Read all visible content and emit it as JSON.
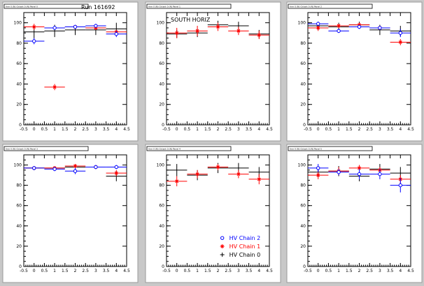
{
  "colors": {
    "chain2": "#0000ff",
    "chain1": "#ff0000",
    "chain0": "#000000",
    "background": "#c8c8c8"
  },
  "legend": {
    "entries": [
      {
        "label": "HV Chain 2",
        "color": "#0000ff",
        "marker": "open-circle"
      },
      {
        "label": "HV Chain 1",
        "color": "#ff0000",
        "marker": "star"
      },
      {
        "label": "HV Chain 0",
        "color": "#000000",
        "marker": "plus"
      }
    ]
  },
  "chart_data": [
    {
      "type": "scatter",
      "title": "Arm 0 (N) Octant 0 (N) Panel 0",
      "annotation": "Run 161692",
      "xlim": [
        -0.5,
        4.5
      ],
      "ylim": [
        0,
        110
      ],
      "xticks": [
        "-0.5",
        "0",
        "0.5",
        "1",
        "1.5",
        "2",
        "2.5",
        "3",
        "3.5",
        "4",
        "4.5"
      ],
      "yticks": [
        "0",
        "20",
        "40",
        "60",
        "80",
        "100"
      ],
      "series": [
        {
          "name": "HV Chain 2",
          "points": [
            {
              "x": 0,
              "y": 82,
              "xerr": 0.5,
              "yerr": 3
            },
            {
              "x": 1,
              "y": 95,
              "xerr": 0.5,
              "yerr": 2
            },
            {
              "x": 2,
              "y": 96,
              "xerr": 0.5,
              "yerr": 2
            },
            {
              "x": 3,
              "y": 97,
              "xerr": 0.5,
              "yerr": 2
            },
            {
              "x": 4,
              "y": 89,
              "xerr": 0.5,
              "yerr": 3
            }
          ]
        },
        {
          "name": "HV Chain 1",
          "points": [
            {
              "x": 0,
              "y": 96,
              "xerr": 0.5,
              "yerr": 3
            },
            {
              "x": 1,
              "y": 37,
              "xerr": 0.5,
              "yerr": 3
            },
            {
              "x": 2,
              "y": 96,
              "xerr": 0.5,
              "yerr": 2
            },
            {
              "x": 3,
              "y": 95,
              "xerr": 0.5,
              "yerr": 2
            },
            {
              "x": 4,
              "y": 91,
              "xerr": 0.5,
              "yerr": 2
            }
          ]
        },
        {
          "name": "HV Chain 0",
          "points": [
            {
              "x": 0,
              "y": 91,
              "xerr": 0.5,
              "yerr": 6
            },
            {
              "x": 1,
              "y": 92,
              "xerr": 0.5,
              "yerr": 6
            },
            {
              "x": 2,
              "y": 93,
              "xerr": 0.5,
              "yerr": 5
            },
            {
              "x": 3,
              "y": 93,
              "xerr": 0.5,
              "yerr": 5
            },
            {
              "x": 4,
              "y": 94,
              "xerr": 0.5,
              "yerr": 6
            }
          ]
        }
      ]
    },
    {
      "type": "scatter",
      "title": "Arm 0 (N) Octant 0 (N) Panel 1",
      "annotation": "SOUTH HORIZ",
      "xlim": [
        -0.5,
        4.5
      ],
      "ylim": [
        0,
        110
      ],
      "xticks": [
        "-0.5",
        "0",
        "0.5",
        "1",
        "1.5",
        "2",
        "2.5",
        "3",
        "3.5",
        "4",
        "4.5"
      ],
      "yticks": [
        "0",
        "20",
        "40",
        "60",
        "80",
        "100"
      ],
      "series": [
        {
          "name": "HV Chain 2",
          "points": []
        },
        {
          "name": "HV Chain 1",
          "points": [
            {
              "x": 0,
              "y": 90,
              "xerr": 0.5,
              "yerr": 5
            },
            {
              "x": 1,
              "y": 92,
              "xerr": 0.5,
              "yerr": 5
            },
            {
              "x": 2,
              "y": 96,
              "xerr": 0.5,
              "yerr": 4
            },
            {
              "x": 3,
              "y": 92,
              "xerr": 0.5,
              "yerr": 4
            },
            {
              "x": 4,
              "y": 88,
              "xerr": 0.5,
              "yerr": 4
            }
          ]
        },
        {
          "name": "HV Chain 0",
          "points": [
            {
              "x": 0,
              "y": 89,
              "xerr": 0.5,
              "yerr": 4
            },
            {
              "x": 1,
              "y": 90,
              "xerr": 0.5,
              "yerr": 4
            },
            {
              "x": 2,
              "y": 98,
              "xerr": 0.5,
              "yerr": 4
            },
            {
              "x": 3,
              "y": 97,
              "xerr": 0.5,
              "yerr": 4
            },
            {
              "x": 4,
              "y": 89,
              "xerr": 0.5,
              "yerr": 4
            }
          ]
        }
      ]
    },
    {
      "type": "scatter",
      "title": "Arm 0 (N) Octant 0 (N) Panel 2",
      "annotation": "",
      "xlim": [
        -0.5,
        4.5
      ],
      "ylim": [
        0,
        110
      ],
      "xticks": [
        "-0.5",
        "0",
        "0.5",
        "1",
        "1.5",
        "2",
        "2.5",
        "3",
        "3.5",
        "4",
        "4.5"
      ],
      "yticks": [
        "0",
        "20",
        "40",
        "60",
        "80",
        "100"
      ],
      "series": [
        {
          "name": "HV Chain 2",
          "points": [
            {
              "x": 0,
              "y": 99,
              "xerr": 0.5,
              "yerr": 2
            },
            {
              "x": 1,
              "y": 92,
              "xerr": 0.5,
              "yerr": 2
            },
            {
              "x": 2,
              "y": 96,
              "xerr": 0.5,
              "yerr": 2
            },
            {
              "x": 3,
              "y": 95,
              "xerr": 0.5,
              "yerr": 2
            },
            {
              "x": 4,
              "y": 90,
              "xerr": 0.5,
              "yerr": 4
            }
          ]
        },
        {
          "name": "HV Chain 1",
          "points": [
            {
              "x": 0,
              "y": 95,
              "xerr": 0.5,
              "yerr": 3
            },
            {
              "x": 1,
              "y": 97,
              "xerr": 0.5,
              "yerr": 2
            },
            {
              "x": 2,
              "y": 98,
              "xerr": 0.5,
              "yerr": 2
            },
            {
              "x": 3,
              "y": 95,
              "xerr": 0.5,
              "yerr": 2
            },
            {
              "x": 4,
              "y": 81,
              "xerr": 0.5,
              "yerr": 3
            }
          ]
        },
        {
          "name": "HV Chain 0",
          "points": [
            {
              "x": 0,
              "y": 97,
              "xerr": 0.5,
              "yerr": 4
            },
            {
              "x": 1,
              "y": 96,
              "xerr": 0.5,
              "yerr": 4
            },
            {
              "x": 2,
              "y": 98,
              "xerr": 0.5,
              "yerr": 3
            },
            {
              "x": 3,
              "y": 93,
              "xerr": 0.5,
              "yerr": 5
            },
            {
              "x": 4,
              "y": 92,
              "xerr": 0.5,
              "yerr": 5
            }
          ]
        }
      ]
    },
    {
      "type": "scatter",
      "title": "Arm 0 (N) Octant 0 (N) Panel 3",
      "annotation": "",
      "xlim": [
        -0.5,
        4.5
      ],
      "ylim": [
        0,
        110
      ],
      "xticks": [
        "-0.5",
        "0",
        "0.5",
        "1",
        "1.5",
        "2",
        "2.5",
        "3",
        "3.5",
        "4",
        "4.5"
      ],
      "yticks": [
        "0",
        "20",
        "40",
        "60",
        "80",
        "100"
      ],
      "series": [
        {
          "name": "HV Chain 2",
          "points": [
            {
              "x": 0,
              "y": 97,
              "xerr": 0.5,
              "yerr": 2
            },
            {
              "x": 1,
              "y": 96,
              "xerr": 0.5,
              "yerr": 2
            },
            {
              "x": 2,
              "y": 94,
              "xerr": 0.5,
              "yerr": 3
            },
            {
              "x": 3,
              "y": 98,
              "xerr": 0.5,
              "yerr": 2
            },
            {
              "x": 4,
              "y": 98,
              "xerr": 0.5,
              "yerr": 2
            }
          ]
        },
        {
          "name": "HV Chain 1",
          "points": [
            {
              "x": 0,
              "y": 97,
              "xerr": 0.5,
              "yerr": 2
            },
            {
              "x": 1,
              "y": 97,
              "xerr": 0.5,
              "yerr": 2
            },
            {
              "x": 2,
              "y": 99,
              "xerr": 0.5,
              "yerr": 2
            },
            {
              "x": 3,
              "y": 98,
              "xerr": 0.5,
              "yerr": 2
            },
            {
              "x": 4,
              "y": 92,
              "xerr": 0.5,
              "yerr": 3
            }
          ]
        },
        {
          "name": "HV Chain 0",
          "points": [
            {
              "x": 0,
              "y": 97,
              "xerr": 0.5,
              "yerr": 2
            },
            {
              "x": 1,
              "y": 97,
              "xerr": 0.5,
              "yerr": 2
            },
            {
              "x": 2,
              "y": 98,
              "xerr": 0.5,
              "yerr": 3
            },
            {
              "x": 3,
              "y": 98,
              "xerr": 0.5,
              "yerr": 2
            },
            {
              "x": 4,
              "y": 89,
              "xerr": 0.5,
              "yerr": 5
            }
          ]
        }
      ]
    },
    {
      "type": "scatter",
      "title": "Arm 0 (N) Octant 0 (N) Panel 4",
      "annotation": "",
      "xlim": [
        -0.5,
        4.5
      ],
      "ylim": [
        0,
        110
      ],
      "xticks": [
        "-0.5",
        "0",
        "0.5",
        "1",
        "1.5",
        "2",
        "2.5",
        "3",
        "3.5",
        "4",
        "4.5"
      ],
      "yticks": [
        "0",
        "20",
        "40",
        "60",
        "80",
        "100"
      ],
      "series": [
        {
          "name": "HV Chain 2",
          "points": []
        },
        {
          "name": "HV Chain 1",
          "points": [
            {
              "x": 0,
              "y": 84,
              "xerr": 0.5,
              "yerr": 5
            },
            {
              "x": 1,
              "y": 91,
              "xerr": 0.5,
              "yerr": 4
            },
            {
              "x": 2,
              "y": 98,
              "xerr": 0.5,
              "yerr": 3
            },
            {
              "x": 3,
              "y": 91,
              "xerr": 0.5,
              "yerr": 4
            },
            {
              "x": 4,
              "y": 86,
              "xerr": 0.5,
              "yerr": 5
            }
          ]
        },
        {
          "name": "HV Chain 0",
          "points": [
            {
              "x": 0,
              "y": 95,
              "xerr": 0.5,
              "yerr": 6
            },
            {
              "x": 1,
              "y": 90,
              "xerr": 0.5,
              "yerr": 5
            },
            {
              "x": 2,
              "y": 97,
              "xerr": 0.5,
              "yerr": 5
            },
            {
              "x": 3,
              "y": 97,
              "xerr": 0.5,
              "yerr": 5
            },
            {
              "x": 4,
              "y": 93,
              "xerr": 0.5,
              "yerr": 5
            }
          ]
        }
      ]
    },
    {
      "type": "scatter",
      "title": "Arm 0 (N) Octant 0 (N) Panel 5",
      "annotation": "",
      "xlim": [
        -0.5,
        4.5
      ],
      "ylim": [
        0,
        110
      ],
      "xticks": [
        "-0.5",
        "0",
        "0.5",
        "1",
        "1.5",
        "2",
        "2.5",
        "3",
        "3.5",
        "4",
        "4.5"
      ],
      "yticks": [
        "0",
        "20",
        "40",
        "60",
        "80",
        "100"
      ],
      "series": [
        {
          "name": "HV Chain 2",
          "points": [
            {
              "x": 0,
              "y": 97,
              "xerr": 0.5,
              "yerr": 4
            },
            {
              "x": 1,
              "y": 93,
              "xerr": 0.5,
              "yerr": 3
            },
            {
              "x": 2,
              "y": 91,
              "xerr": 0.5,
              "yerr": 5
            },
            {
              "x": 3,
              "y": 91,
              "xerr": 0.5,
              "yerr": 5
            },
            {
              "x": 4,
              "y": 80,
              "xerr": 0.5,
              "yerr": 7
            }
          ]
        },
        {
          "name": "HV Chain 1",
          "points": [
            {
              "x": 0,
              "y": 90,
              "xerr": 0.5,
              "yerr": 4
            },
            {
              "x": 1,
              "y": 94,
              "xerr": 0.5,
              "yerr": 4
            },
            {
              "x": 2,
              "y": 97,
              "xerr": 0.5,
              "yerr": 3
            },
            {
              "x": 3,
              "y": 95,
              "xerr": 0.5,
              "yerr": 3
            },
            {
              "x": 4,
              "y": 86,
              "xerr": 0.5,
              "yerr": 4
            }
          ]
        },
        {
          "name": "HV Chain 0",
          "points": [
            {
              "x": 0,
              "y": 93,
              "xerr": 0.5,
              "yerr": 5
            },
            {
              "x": 1,
              "y": 94,
              "xerr": 0.5,
              "yerr": 5
            },
            {
              "x": 2,
              "y": 89,
              "xerr": 0.5,
              "yerr": 5
            },
            {
              "x": 3,
              "y": 96,
              "xerr": 0.5,
              "yerr": 5
            },
            {
              "x": 4,
              "y": 92,
              "xerr": 0.5,
              "yerr": 6
            }
          ]
        }
      ]
    }
  ]
}
